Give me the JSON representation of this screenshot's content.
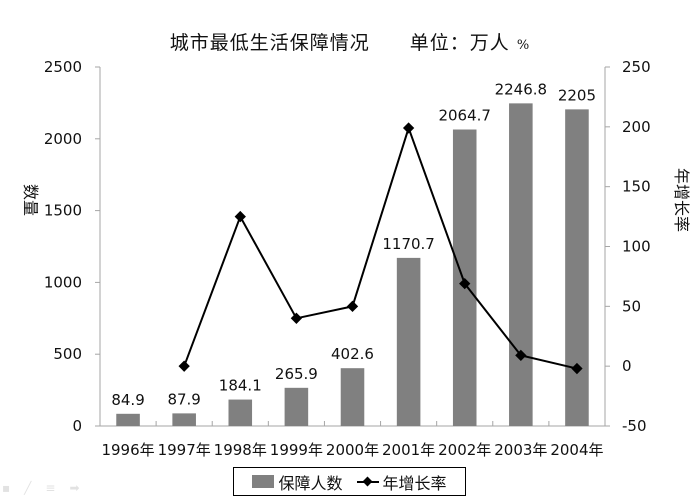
{
  "title": {
    "main": "城市最低生活保障情况",
    "unit": "单位：万人",
    "pct": "%"
  },
  "axes": {
    "left_title": "数量",
    "right_title": "年增长率",
    "left_ticks": [
      "0",
      "500",
      "1000",
      "1500",
      "2000",
      "2500"
    ],
    "right_ticks": [
      "-50",
      "0",
      "50",
      "100",
      "150",
      "200",
      "250"
    ]
  },
  "legend": {
    "bar_label": "保障人数",
    "line_label": "年增长率"
  },
  "colors": {
    "bar": "#808080",
    "line": "#000000",
    "axis": "#a6a6a6"
  },
  "chart_data": {
    "type": "bar+line",
    "title": "城市最低生活保障情况 单位：万人 %",
    "categories": [
      "1996年",
      "1997年",
      "1998年",
      "1999年",
      "2000年",
      "2001年",
      "2002年",
      "2003年",
      "2004年"
    ],
    "series": [
      {
        "name": "保障人数",
        "type": "bar",
        "axis": "left",
        "values": [
          84.9,
          87.9,
          184.1,
          265.9,
          402.6,
          1170.7,
          2064.7,
          2246.8,
          2205
        ],
        "labels": [
          "84.9",
          "87.9",
          "184.1",
          "265.9",
          "402.6",
          "1170.7",
          "2064.7",
          "2246.8",
          "2205"
        ]
      },
      {
        "name": "年增长率",
        "type": "line",
        "axis": "right",
        "marker": "diamond",
        "values": [
          null,
          0,
          125,
          40,
          50,
          199,
          69,
          9,
          -2
        ]
      }
    ],
    "xlabel": "",
    "ylabel": "数量",
    "y2label": "年增长率",
    "ylim": [
      0,
      2500
    ],
    "y2lim": [
      -50,
      250
    ],
    "grid": false,
    "legend_position": "bottom"
  }
}
